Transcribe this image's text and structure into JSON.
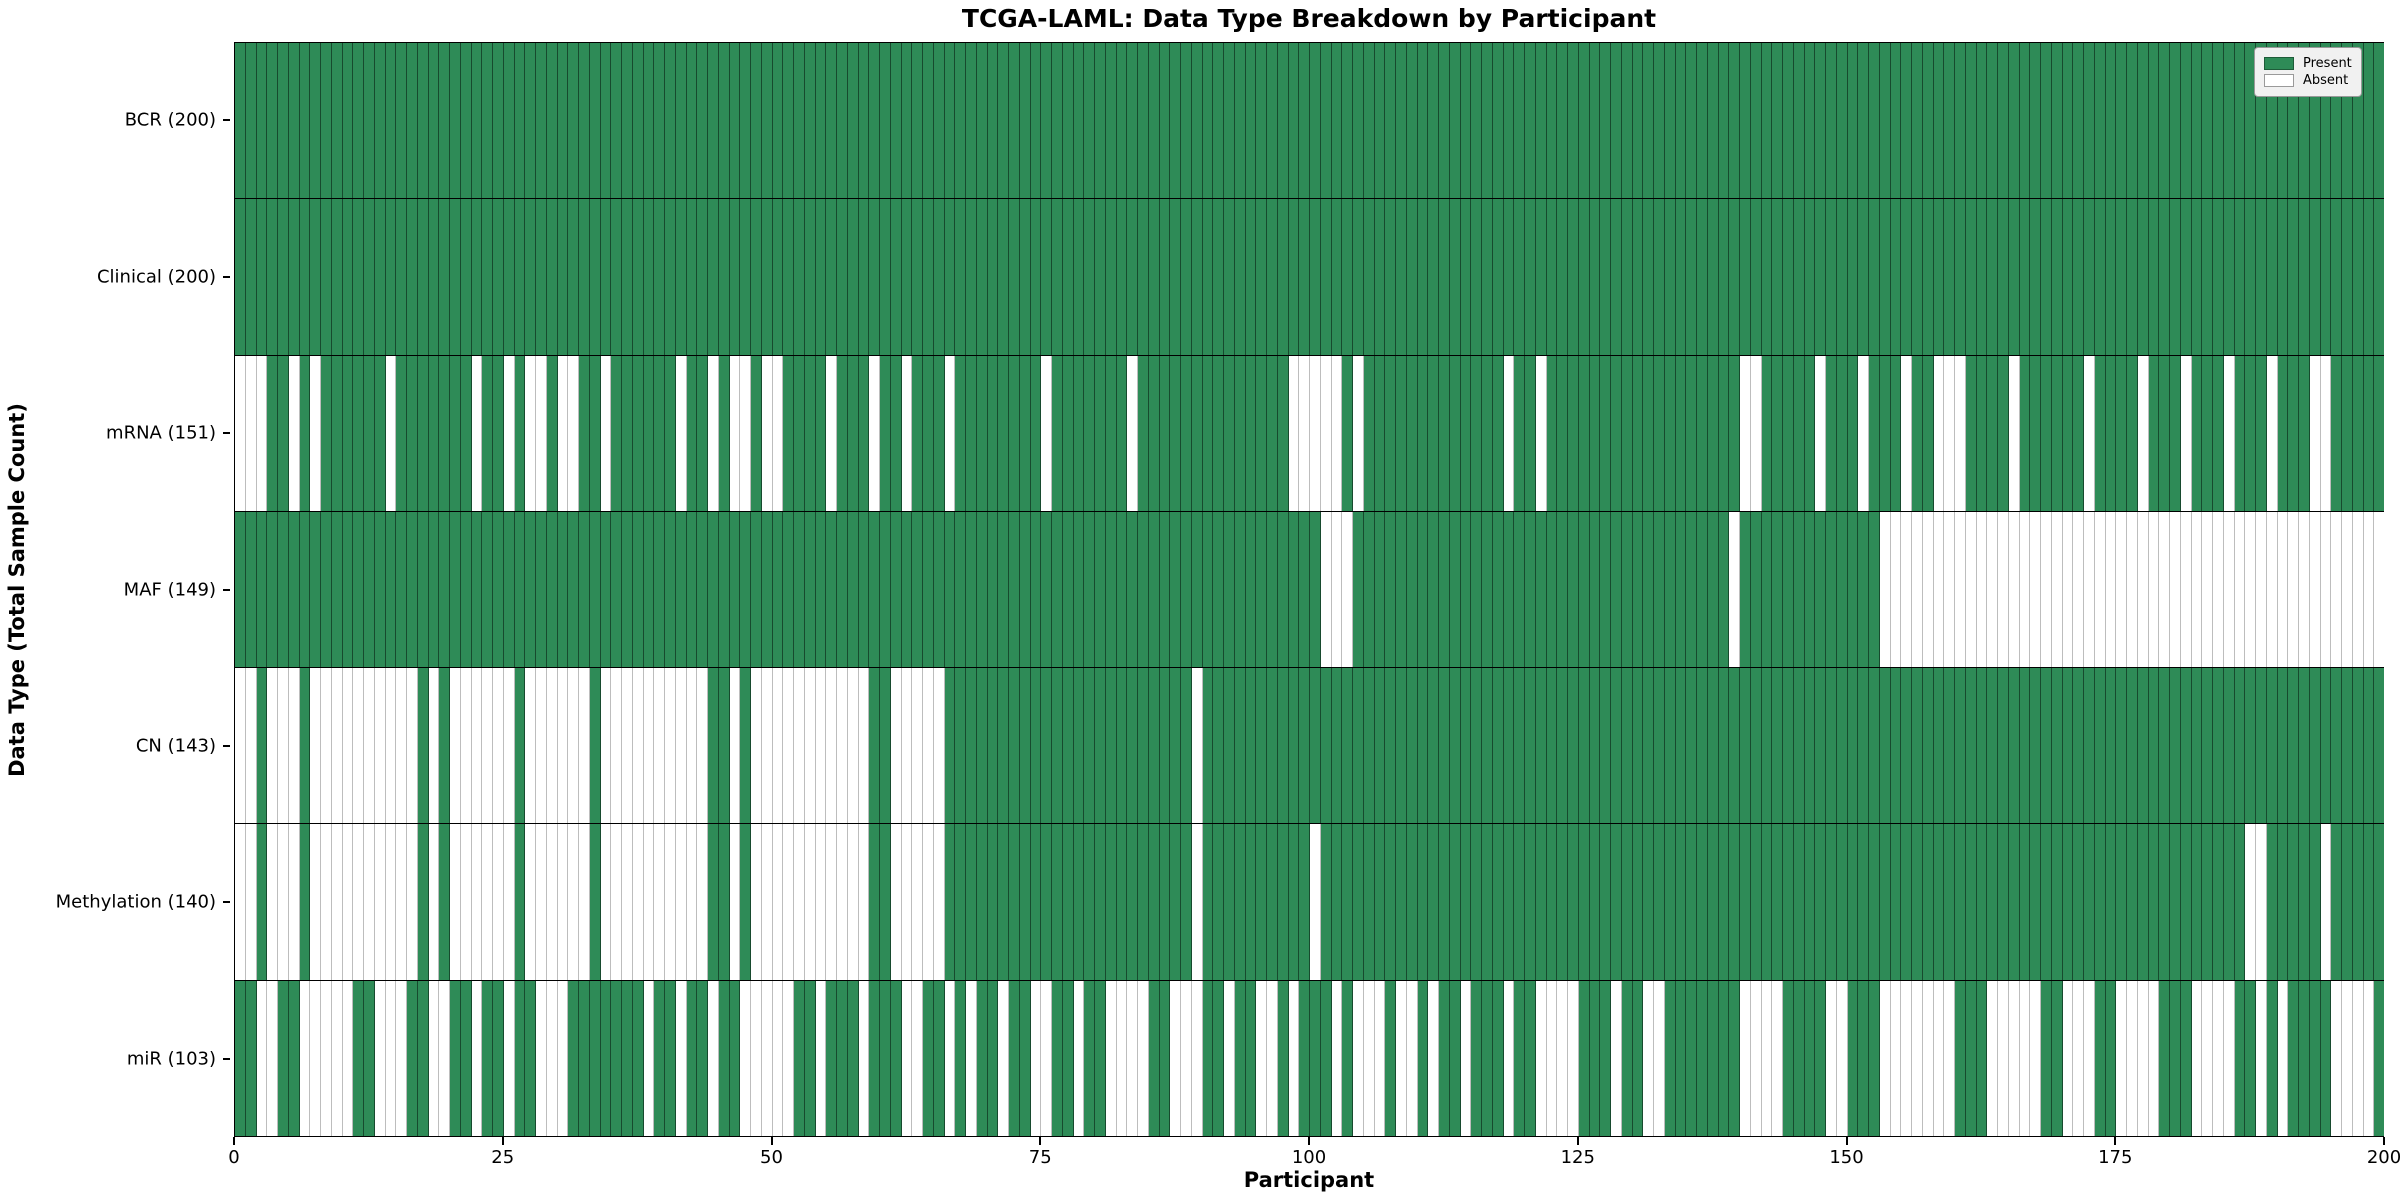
{
  "title": "TCGA-LAML: Data Type Breakdown by Participant",
  "chart_data": {
    "type": "heatmap",
    "title": "TCGA-LAML: Data Type Breakdown by Participant",
    "xlabel": "Participant",
    "ylabel": "Data Type (Total Sample Count)",
    "x_range": [
      0,
      200
    ],
    "x_ticks": [
      0,
      25,
      50,
      75,
      100,
      125,
      150,
      175,
      200
    ],
    "n_participants": 200,
    "grid": "cell-borders",
    "legend": {
      "position": "upper right",
      "entries": [
        {
          "label": "Present",
          "color": "#2e8b57"
        },
        {
          "label": "Absent",
          "color": "#ffffff"
        }
      ]
    },
    "colors": {
      "present": "#2e8b57",
      "absent": "#ffffff"
    },
    "value_encoding": {
      "1": "present",
      "0": "absent"
    },
    "rows": [
      {
        "name": "BCR",
        "label": "BCR (200)",
        "present_count": 200,
        "pattern": "11111111111111111111111111111111111111111111111111111111111111111111111111111111111111111111111111111111111111111111111111111111111111111111111111111111111111111111111111111111111111111111111111111111"
      },
      {
        "name": "Clinical",
        "label": "Clinical (200)",
        "present_count": 200,
        "pattern": "11111111111111111111111111111111111111111111111111111111111111111111111111111111111111111111111111111111111111111111111111111111111111111111111111111111111111111111111111111111111111111111111111111111"
      },
      {
        "name": "mRNA",
        "label": "mRNA (151)",
        "present_count": 151,
        "pattern": "00011010111111011111110110100100110111111011010010011110111011011101111111101111111011111111111111000001011111111111110110111111111111111111001111101110111011000111101111110111101110111011101110011111"
      },
      {
        "name": "MAF",
        "label": "MAF (149)",
        "present_count": 149,
        "pattern": "11111111111111111111111111111111111111111111111111111111111111111111111111111111111111111111111111111000111111111111111111111111111111111110111111111111100000000000000000000000000000000000000000000000"
      },
      {
        "name": "CN",
        "label": "CN (143)",
        "present_count": 143,
        "pattern": "00100010000000000101000000100000010000000000110100000000000110000011111111111111111111111011111111111111111111111111111111111111111111111111111111111111111111111111111111111111111111111111111111111111"
      },
      {
        "name": "Methylation",
        "label": "Methylation (140)",
        "present_count": 140,
        "pattern": "00100010000000000101000000100000010000000000110100000000000110000011111111111111111111111011111111110111111111111111111111111111111111111111111111111111111111111111111111111111111111111110011111011111"
      },
      {
        "name": "miR",
        "label": "miR (103)",
        "present_count": 103,
        "pattern": "11001100000110001100110110110001111111011011011000001101110111001101011011001101100001100011011001011101000100101101110110000111011001111111000011110011100000001110000011000110000111000011010111100001"
      }
    ]
  }
}
